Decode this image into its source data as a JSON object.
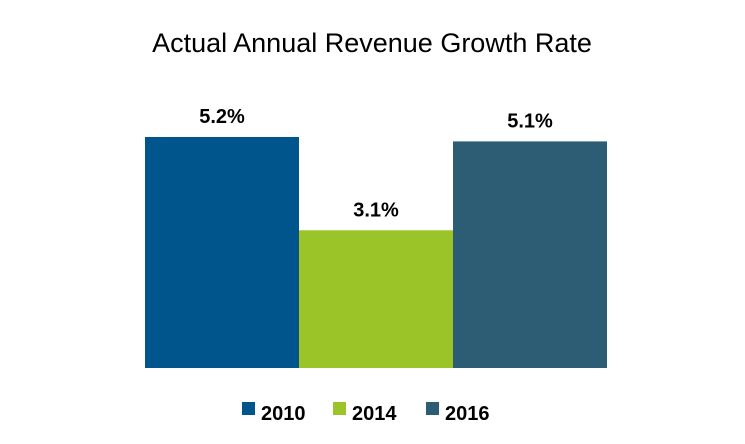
{
  "chart_data": {
    "type": "bar",
    "title": "Actual Annual Revenue Growth Rate",
    "xlabel": "",
    "ylabel": "",
    "ylim": [
      0,
      5.2
    ],
    "grid": false,
    "legend_position": "bottom",
    "value_suffix": "%",
    "series": [
      {
        "name": "2010",
        "value": 5.2,
        "label": "5.2%",
        "color": "#00568C"
      },
      {
        "name": "2014",
        "value": 3.1,
        "label": "3.1%",
        "color": "#9BC428"
      },
      {
        "name": "2016",
        "value": 5.1,
        "label": "5.1%",
        "color": "#2D5C75"
      }
    ]
  }
}
